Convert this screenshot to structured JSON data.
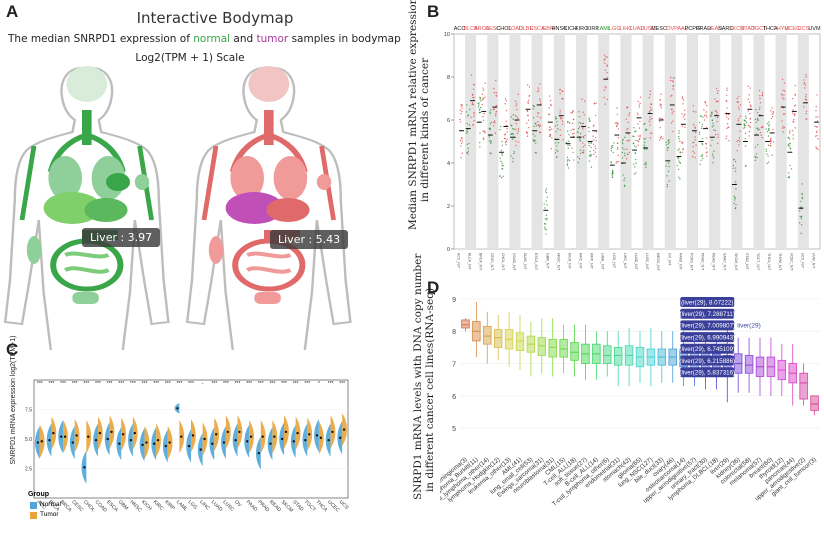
{
  "panel_a": {
    "letter": "A",
    "title": "Interactive Bodymap",
    "subtitle_pre": "The median SNRPD1 expression of ",
    "subtitle_normal": "normal",
    "subtitle_mid": " and ",
    "subtitle_tumor": "tumor",
    "subtitle_post": " samples in bodymap",
    "scale": "Log2(TPM + 1) Scale",
    "normal_tooltip": "Liver : 3.97",
    "tumor_tooltip": "Liver : 5.43",
    "normal_liver_value": 3.97,
    "tumor_liver_value": 5.43,
    "colors": {
      "normal": "#3aa64a",
      "tumor": "#e06a6a",
      "tumor_liver": "#c050b8"
    }
  },
  "panel_b": {
    "letter": "B",
    "ylabel_line1": "Median SNRPD1 mRNA relative expression",
    "ylabel_line2": "in different kinds of cancer"
  },
  "panel_c": {
    "letter": "C",
    "ylabel": "SNRPD1 mRNA expression log2(TPM+1)",
    "legend_title": "Group",
    "legend_normal": "Normal",
    "legend_tumor": "Tumor",
    "colors": {
      "normal": "#4da6d8",
      "tumor": "#e8a33a"
    }
  },
  "panel_d": {
    "letter": "D",
    "ylabel_line1": "SNRPD1 mRNA levels with DNA copy number",
    "ylabel_line2": "in different cancer cell lines(RNA-seq)",
    "liver_label": "liver(29)",
    "tooltips": [
      "(liver(29), 8.07222)",
      "(liver(29), 7.288711)",
      "(liver(29), 7.009807)",
      "(liver(29), 6.990943)",
      "(liver(29), 6.745109)",
      "(liver(29), 6.215886)",
      "(liver(29), 5.837316)"
    ]
  },
  "chart_data": [
    {
      "id": "B",
      "type": "scatter",
      "title": "",
      "ylabel": "Median SNRPD1 mRNA relative expression in different kinds of cancer",
      "ylim": [
        0,
        10
      ],
      "yticks": [
        0,
        2,
        4,
        6,
        8,
        10
      ],
      "categories": [
        "ACC",
        "BLCA",
        "BRCA",
        "CESC",
        "CHOL",
        "COAD",
        "DLBC",
        "ESCA",
        "GBM",
        "HNSC",
        "KICH",
        "KIRC",
        "KIRP",
        "LAML",
        "LGG",
        "LIHC",
        "LUAD",
        "LUSC",
        "MESO",
        "OV",
        "PAAD",
        "PCPG",
        "PRAD",
        "READ",
        "SARC",
        "SKCM",
        "STAD",
        "TGCT",
        "THCA",
        "THYM",
        "UCEC",
        "UCS",
        "UVM"
      ],
      "label_colors": [
        "#222",
        "#e05050",
        "#e05050",
        "#e05050",
        "#222",
        "#e05050",
        "#e05050",
        "#e05050",
        "#e05050",
        "#222",
        "#222",
        "#222",
        "#222",
        "#2a9a2a",
        "#e05050",
        "#e05050",
        "#e05050",
        "#e05050",
        "#222",
        "#e05050",
        "#e05050",
        "#222",
        "#222",
        "#e05050",
        "#222",
        "#e05050",
        "#e05050",
        "#e05050",
        "#222",
        "#e05050",
        "#e05050",
        "#e05050",
        "#222"
      ],
      "series": [
        {
          "name": "Normal",
          "color": "#2e8b2e",
          "values": [
            null,
            5.6,
            5.9,
            5.3,
            4.5,
            5.2,
            null,
            5.5,
            1.8,
            5.1,
            4.9,
            5.2,
            5.0,
            null,
            3.9,
            4.0,
            4.6,
            4.7,
            null,
            4.1,
            4.3,
            null,
            5.0,
            5.2,
            null,
            3.0,
            5.0,
            5.3,
            5.0,
            null,
            4.5,
            1.9,
            null
          ]
        },
        {
          "name": "Tumor",
          "color": "#e04040",
          "values": [
            5.5,
            6.9,
            6.4,
            6.6,
            5.7,
            6.0,
            6.5,
            6.7,
            5.9,
            6.2,
            5.2,
            5.7,
            5.5,
            7.9,
            5.3,
            5.4,
            6.1,
            6.3,
            6.0,
            6.7,
            5.8,
            5.5,
            5.6,
            6.2,
            6.3,
            5.8,
            6.5,
            6.2,
            5.4,
            6.6,
            6.4,
            6.8,
            5.9
          ]
        }
      ]
    },
    {
      "id": "C",
      "type": "violin",
      "title": "",
      "ylabel": "SNRPD1 mRNA expression log2(TPM+1)",
      "ylim": [
        0,
        10
      ],
      "yticks": [
        2.5,
        5.0,
        7.5
      ],
      "categories": [
        "ACC",
        "BLCA",
        "BRCA",
        "CESC",
        "CHOL",
        "COAD",
        "ESCA",
        "GBM",
        "HNSC",
        "KICH",
        "KIRC",
        "KIRP",
        "LAML",
        "LGG",
        "LIHC",
        "LUAD",
        "LUSC",
        "OV",
        "PAAD",
        "PRAD",
        "READ",
        "SKCM",
        "STAD",
        "TGCT",
        "THCA",
        "UCEC",
        "UCS"
      ],
      "significance": [
        "***",
        "***",
        "***",
        "***",
        "***",
        "***",
        "***",
        "***",
        "***",
        "***",
        "***",
        "***",
        "***",
        "***",
        "-",
        "***",
        "***",
        "***",
        "***",
        "***",
        "***",
        "***",
        "***",
        "***",
        "*",
        "***",
        "***"
      ],
      "series": [
        {
          "name": "Normal",
          "color": "#4da6d8",
          "medians": [
            4.7,
            4.9,
            5.2,
            4.7,
            2.6,
            4.9,
            5.0,
            4.6,
            4.9,
            4.5,
            4.6,
            4.4,
            7.6,
            4.4,
            4.1,
            4.6,
            4.7,
            4.9,
            4.8,
            3.8,
            4.6,
            5.0,
            4.8,
            4.9,
            5.3,
            4.9,
            5.1
          ]
        },
        {
          "name": "Tumor",
          "color": "#e8a33a",
          "medians": [
            4.8,
            5.5,
            5.2,
            5.3,
            5.2,
            5.5,
            5.6,
            5.4,
            5.5,
            4.7,
            4.9,
            4.7,
            5.2,
            5.3,
            5.0,
            5.4,
            5.6,
            5.6,
            5.2,
            5.2,
            5.2,
            5.6,
            5.5,
            5.4,
            5.1,
            5.6,
            5.8
          ]
        }
      ]
    },
    {
      "id": "D",
      "type": "box",
      "title": "",
      "ylabel": "SNRPD1 mRNA levels with DNA copy number in different cancer cell lines(RNA-seq)",
      "ylim": [
        4.2,
        9.4
      ],
      "yticks": [
        5,
        6,
        7,
        8,
        9
      ],
      "categories": [
        "meningioma(3)",
        "lymphoma_Burkitt(11)",
        "B-cell_lymphoma_other(14)",
        "lymphoma_Hodgkin(12)",
        "leukemia_other(13)",
        "AML(41)",
        "lung_small_cell(53)",
        "Ewings_sarcoma(31)",
        "neuroblastoma(31)",
        "CML(15)",
        "T-cell_ALL(18)",
        "soft_tissue(27)",
        "B-cell_ALL(14)",
        "T-cell_lymphoma_other(6)",
        "endometrial(31)",
        "stomach(42)",
        "glioma(65)",
        "lung_NSC(127)",
        "bile_duct(33)",
        "ovary(46)",
        "osteosarcoma(14)",
        "upper_aerodigestive(57)",
        "urinary_tract(30)",
        "lymphoma_DLBCL(18)",
        "liver(29)",
        "kidney(36)",
        "colorectal(58)",
        "melanoma(57)",
        "breast(60)",
        "thyroid(12)",
        "pancreas(44)",
        "upper_aerodigestive(2)",
        "giant_cell_tumour(3)"
      ],
      "medians": [
        8.2,
        8.0,
        7.85,
        7.8,
        7.75,
        7.7,
        7.6,
        7.55,
        7.5,
        7.45,
        7.35,
        7.3,
        7.3,
        7.25,
        7.25,
        7.25,
        7.2,
        7.2,
        7.2,
        7.2,
        7.15,
        7.1,
        7.1,
        7.05,
        7.0,
        7.0,
        6.95,
        6.9,
        6.9,
        6.8,
        6.7,
        6.4,
        5.75
      ],
      "q1": [
        8.1,
        7.7,
        7.6,
        7.5,
        7.45,
        7.4,
        7.35,
        7.25,
        7.2,
        7.2,
        7.1,
        7.0,
        7.0,
        7.0,
        6.95,
        6.95,
        6.9,
        6.95,
        6.95,
        6.95,
        6.9,
        6.85,
        6.85,
        6.8,
        6.75,
        6.7,
        6.7,
        6.6,
        6.6,
        6.5,
        6.4,
        5.9,
        5.55
      ],
      "q3": [
        8.35,
        8.3,
        8.15,
        8.05,
        8.05,
        7.95,
        7.85,
        7.8,
        7.75,
        7.75,
        7.65,
        7.6,
        7.6,
        7.55,
        7.5,
        7.55,
        7.5,
        7.45,
        7.45,
        7.45,
        7.45,
        7.35,
        7.4,
        7.3,
        7.25,
        7.3,
        7.25,
        7.2,
        7.2,
        7.1,
        7.0,
        6.7,
        6.0
      ],
      "whisker_low": [
        8.0,
        7.2,
        7.0,
        7.1,
        6.9,
        6.8,
        6.6,
        6.7,
        6.6,
        6.7,
        6.6,
        6.5,
        6.5,
        6.6,
        6.3,
        6.3,
        6.4,
        6.3,
        6.4,
        6.4,
        6.3,
        6.3,
        6.2,
        6.2,
        5.8,
        6.1,
        6.1,
        6.0,
        6.0,
        6.0,
        5.7,
        5.7,
        5.4
      ],
      "whisker_high": [
        8.4,
        8.9,
        8.6,
        8.5,
        8.6,
        8.5,
        8.3,
        8.4,
        8.4,
        8.2,
        8.2,
        8.2,
        8.0,
        8.0,
        8.0,
        8.1,
        8.0,
        8.1,
        8.0,
        8.0,
        8.0,
        7.9,
        7.9,
        7.8,
        8.1,
        7.8,
        7.8,
        7.8,
        7.8,
        7.6,
        7.6,
        7.0,
        6.0
      ]
    }
  ]
}
